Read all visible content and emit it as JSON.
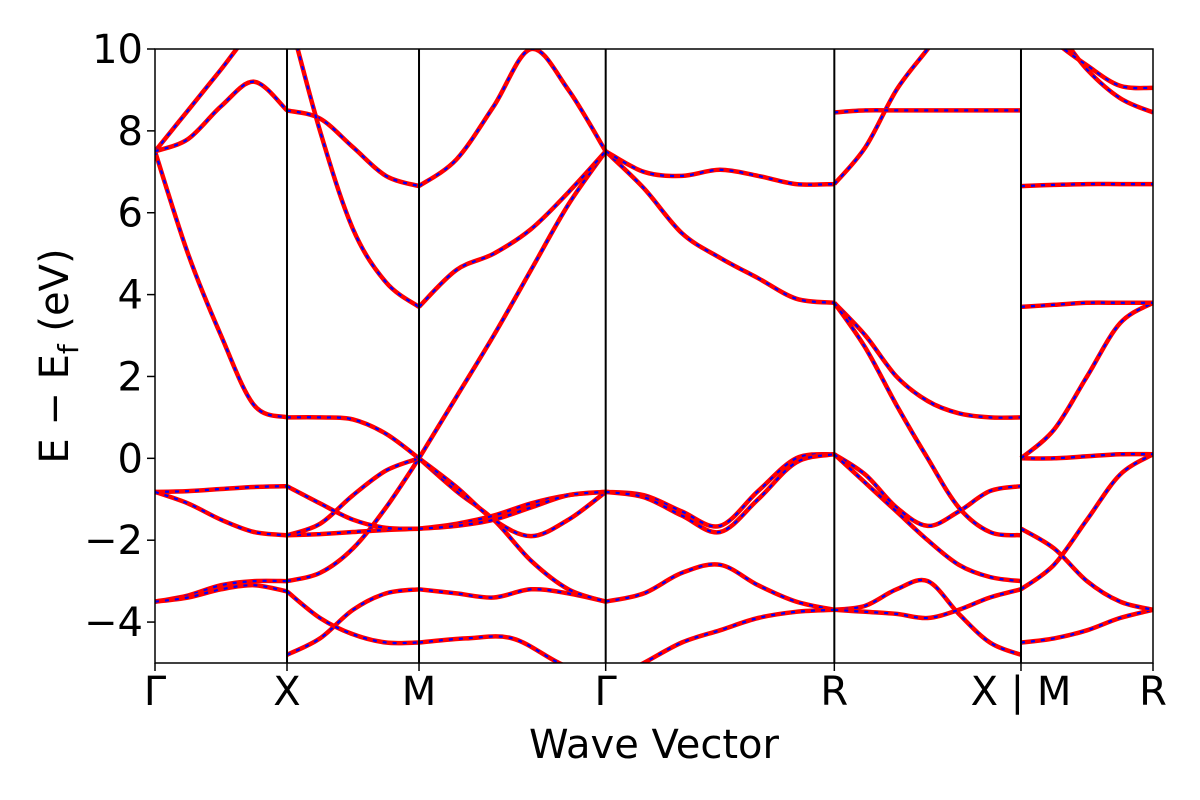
{
  "chart_data": {
    "type": "line",
    "title": "",
    "xlabel": "Wave Vector",
    "ylabel": "E − E",
    "ylabel_sub": "f",
    "ylabel_unit": " (eV)",
    "ylim": [
      -5,
      10
    ],
    "yticks": [
      {
        "value": -4,
        "label": "−4"
      },
      {
        "value": -2,
        "label": "−2"
      },
      {
        "value": 0,
        "label": "0"
      },
      {
        "value": 2,
        "label": "2"
      },
      {
        "value": 4,
        "label": "4"
      },
      {
        "value": 6,
        "label": "6"
      },
      {
        "value": 8,
        "label": "8"
      },
      {
        "value": 10,
        "label": "10"
      }
    ],
    "k_points": [
      {
        "label": "Γ",
        "k": 0
      },
      {
        "label": "X",
        "k": 0.5
      },
      {
        "label": "M",
        "k": 1.0
      },
      {
        "label": "Γ",
        "k": 1.707
      },
      {
        "label": "R",
        "k": 2.573
      },
      {
        "label": "X | M",
        "k": 3.28
      },
      {
        "label": "R",
        "k": 3.78
      }
    ],
    "xlim": [
      0,
      3.78
    ],
    "segments": [
      {
        "from": "Γ",
        "to": "X",
        "k0": 0,
        "k1": 0.5,
        "bands": [
          [
            -3.5,
            -3.35,
            -3.1,
            -3.0,
            -3.0
          ],
          [
            -3.5,
            -3.4,
            -3.2,
            -3.1,
            -3.25
          ],
          [
            -0.82,
            -0.8,
            -0.75,
            -0.7,
            -0.68
          ],
          [
            -0.82,
            -1.1,
            -1.5,
            -1.8,
            -1.88
          ],
          [
            7.5,
            5.0,
            3.0,
            1.3,
            1.0
          ],
          [
            7.5,
            8.5,
            9.5,
            10.5,
            11.0
          ],
          [
            7.5,
            7.8,
            8.6,
            9.2,
            8.5
          ]
        ]
      },
      {
        "from": "X",
        "to": "M",
        "k0": 0.5,
        "k1": 1.0,
        "bands": [
          [
            -4.8,
            -4.4,
            -3.7,
            -3.3,
            -3.2
          ],
          [
            -3.25,
            -3.9,
            -4.3,
            -4.5,
            -4.5
          ],
          [
            -3.0,
            -2.8,
            -2.2,
            -1.2,
            0.0
          ],
          [
            -1.88,
            -1.85,
            -1.8,
            -1.75,
            -1.72
          ],
          [
            -1.88,
            -1.6,
            -0.9,
            -0.3,
            0.0
          ],
          [
            -0.68,
            -1.1,
            -1.5,
            -1.7,
            -1.72
          ],
          [
            1.0,
            1.0,
            0.95,
            0.6,
            0.0
          ],
          [
            8.5,
            8.3,
            7.6,
            6.9,
            6.65
          ],
          [
            11.0,
            8.0,
            5.6,
            4.3,
            3.7
          ]
        ]
      },
      {
        "from": "M",
        "to": "Γ",
        "k0": 1.0,
        "k1": 1.707,
        "bands": [
          [
            -4.5,
            -4.4,
            -4.4,
            -5.0,
            -5.5
          ],
          [
            -3.2,
            -3.3,
            -3.4,
            -3.2,
            -3.3,
            -3.5
          ],
          [
            0.0,
            -0.8,
            -1.5,
            -2.5,
            -3.2,
            -3.5
          ],
          [
            0.0,
            -0.7,
            -1.5,
            -1.9,
            -1.5,
            -0.82
          ],
          [
            -1.72,
            -1.6,
            -1.4,
            -1.1,
            -0.9,
            -0.82
          ],
          [
            -1.72,
            -1.65,
            -1.5,
            -1.2,
            -0.9,
            -0.82
          ],
          [
            0.0,
            1.5,
            3.0,
            4.6,
            6.2,
            7.5
          ],
          [
            3.7,
            4.6,
            5.0,
            5.6,
            6.5,
            7.5
          ],
          [
            6.65,
            7.3,
            8.6,
            10.0,
            9.0,
            7.5
          ]
        ]
      },
      {
        "from": "Γ",
        "to": "R",
        "k0": 1.707,
        "k1": 2.573,
        "bands": [
          [
            -3.5,
            -3.3,
            -2.8,
            -2.6,
            -3.1,
            -3.5,
            -3.7
          ],
          [
            -0.82,
            -0.9,
            -1.3,
            -1.65,
            -0.8,
            0.0,
            0.1
          ],
          [
            -0.82,
            -0.95,
            -1.4,
            -1.8,
            -1.0,
            -0.1,
            0.1
          ],
          [
            7.5,
            6.6,
            5.5,
            4.9,
            4.4,
            3.9,
            3.8
          ],
          [
            7.5,
            7.0,
            6.9,
            7.05,
            6.9,
            6.7,
            6.7
          ],
          [
            -5.5,
            -5.0,
            -4.5,
            -4.2,
            -3.9,
            -3.75,
            -3.7
          ]
        ]
      },
      {
        "from": "R",
        "to": "X",
        "k0": 2.573,
        "k1": 3.28,
        "bands": [
          [
            -3.7,
            -3.6,
            -3.2,
            -3.0,
            -3.8,
            -4.5,
            -4.8
          ],
          [
            -3.7,
            -3.75,
            -3.8,
            -3.9,
            -3.7,
            -3.4,
            -3.2
          ],
          [
            0.1,
            -0.4,
            -1.2,
            -1.65,
            -1.3,
            -0.8,
            -0.68
          ],
          [
            0.1,
            -0.6,
            -1.3,
            -2.0,
            -2.6,
            -2.9,
            -3.0
          ],
          [
            3.8,
            3.0,
            2.0,
            1.4,
            1.1,
            1.0,
            1.0
          ],
          [
            3.8,
            2.7,
            1.3,
            0.0,
            -1.2,
            -1.8,
            -1.88
          ],
          [
            6.7,
            7.6,
            9.0,
            10.0,
            11.0,
            11.5,
            11.5
          ],
          [
            8.45,
            8.5,
            8.5,
            8.5,
            8.5,
            8.5,
            8.5
          ]
        ]
      },
      {
        "from": "M",
        "to": "R",
        "k0": 3.28,
        "k1": 3.78,
        "bands": [
          [
            -4.5,
            -4.4,
            -4.2,
            -3.9,
            -3.7
          ],
          [
            -3.2,
            -2.6,
            -1.5,
            -0.4,
            0.1
          ],
          [
            -1.72,
            -2.2,
            -3.0,
            -3.5,
            -3.7
          ],
          [
            0.0,
            0.0,
            0.05,
            0.1,
            0.1
          ],
          [
            0.0,
            0.7,
            2.0,
            3.3,
            3.8
          ],
          [
            3.7,
            3.75,
            3.8,
            3.8,
            3.8
          ],
          [
            6.65,
            6.68,
            6.7,
            6.7,
            6.7
          ],
          [
            11.0,
            10.5,
            9.5,
            8.8,
            8.45
          ],
          [
            11.0,
            10.2,
            9.6,
            9.1,
            9.05
          ]
        ]
      }
    ],
    "series": [
      {
        "name": "",
        "color": "#ff0000",
        "style": "solid"
      },
      {
        "name": "",
        "color": "#0000ff",
        "style": "dashed"
      }
    ],
    "grid": false,
    "legend": "none"
  }
}
